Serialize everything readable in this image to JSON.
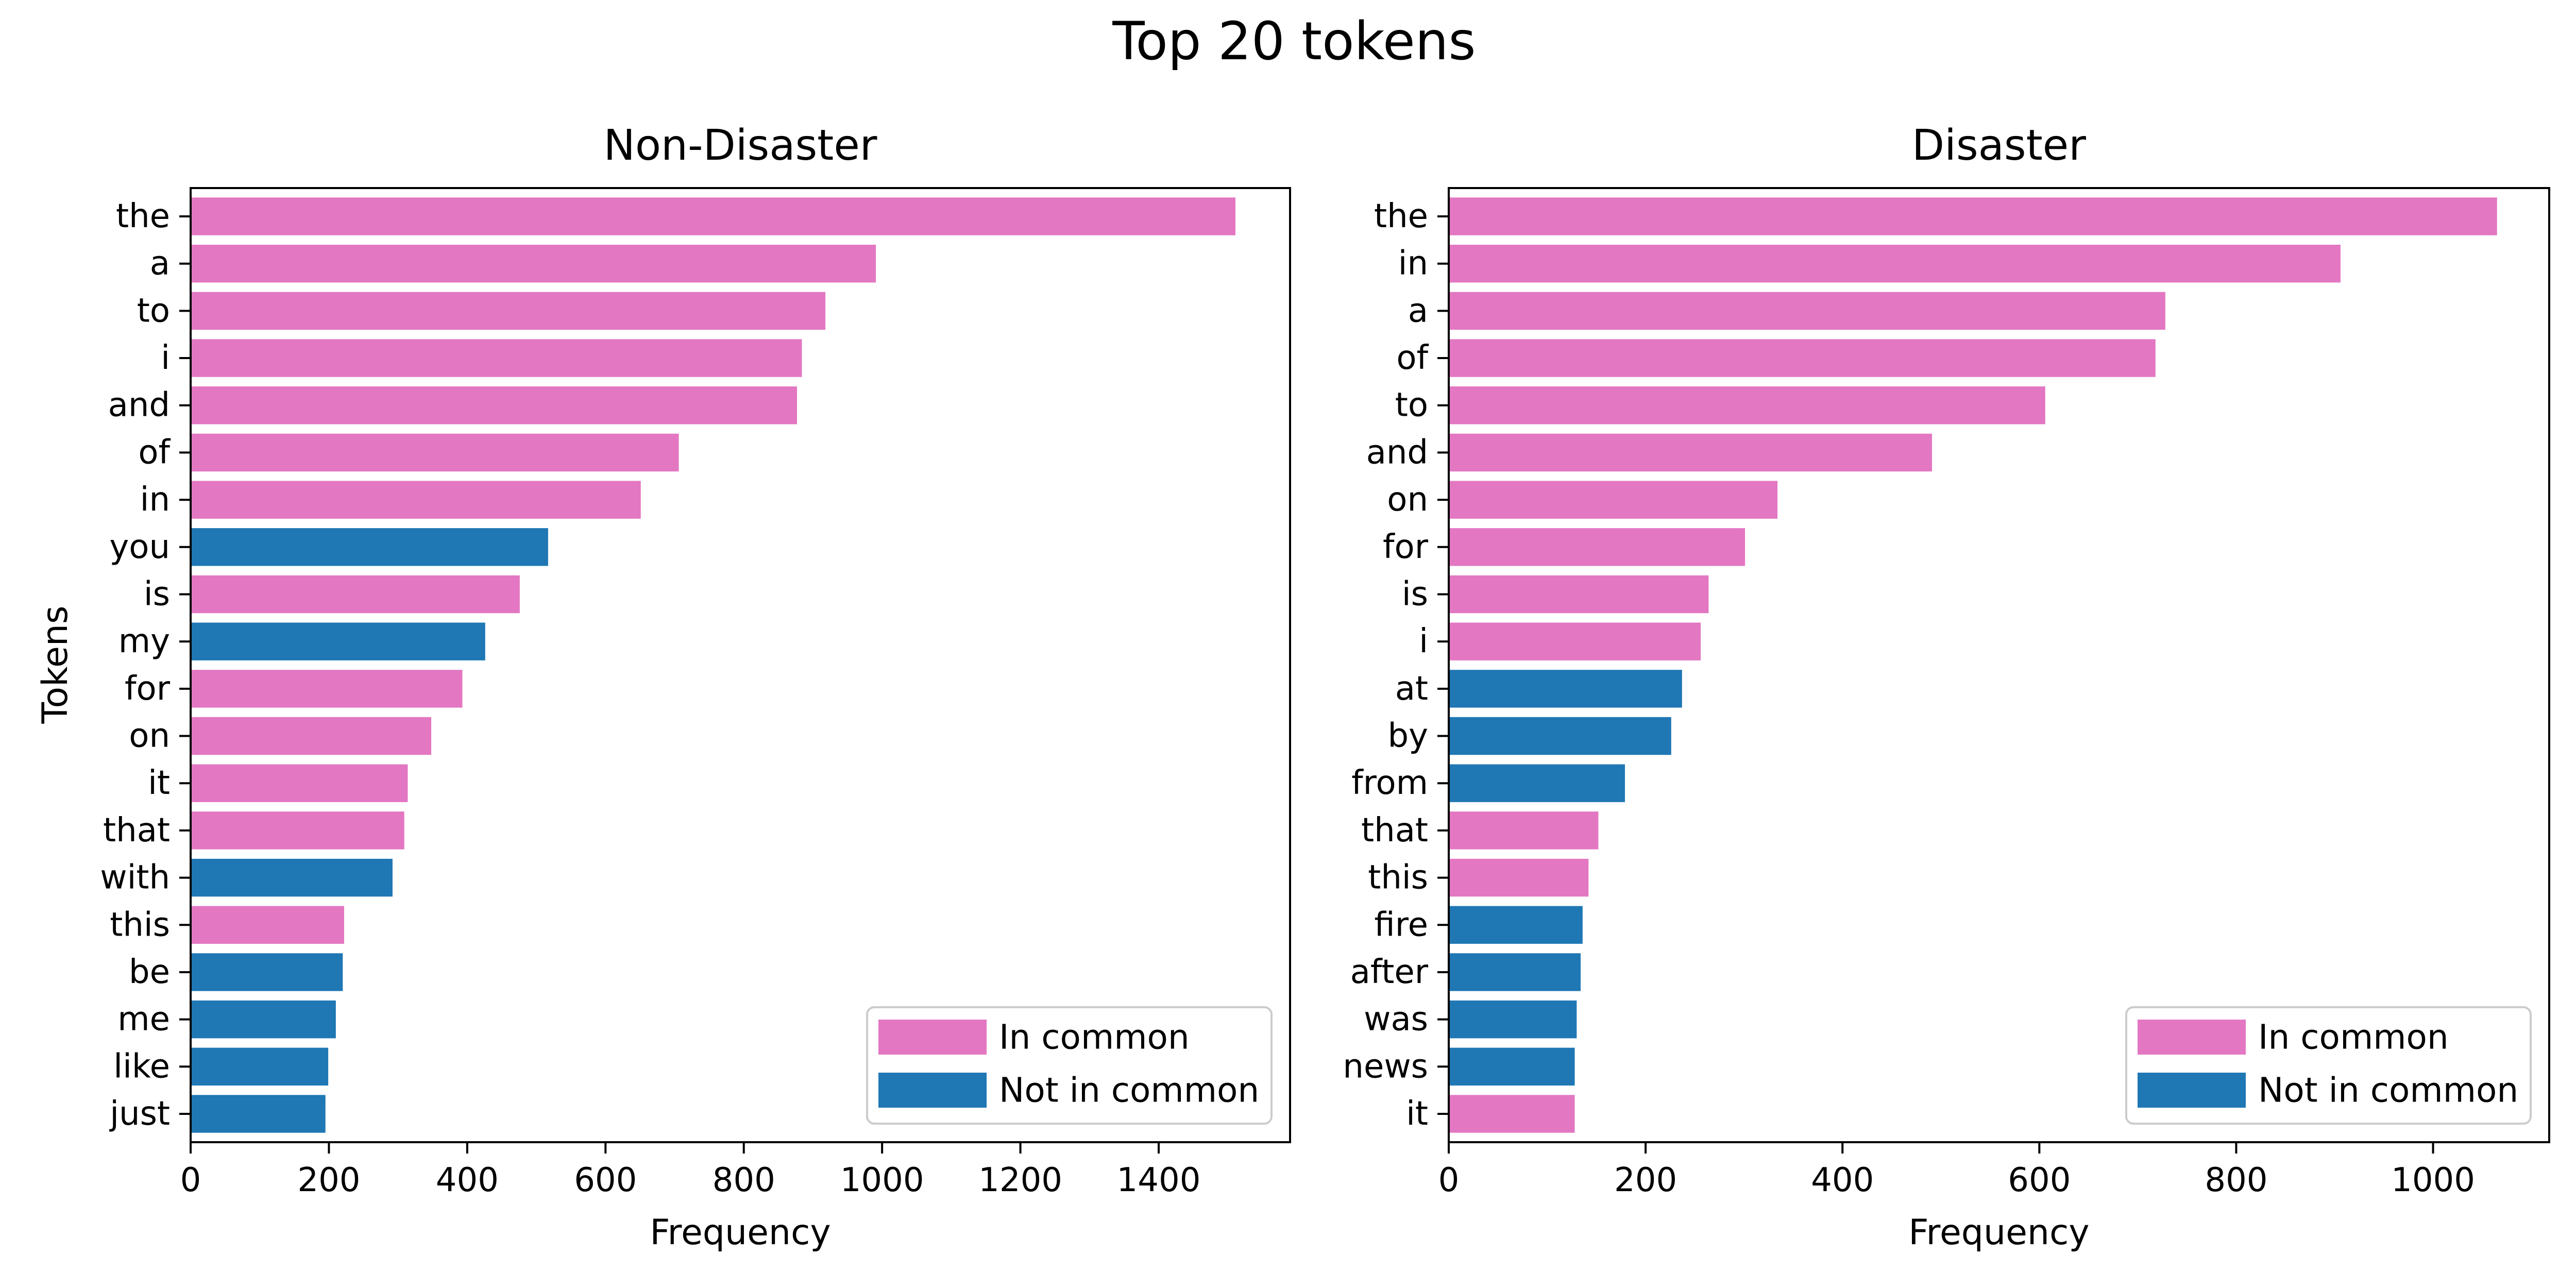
{
  "figure": {
    "title": "Top 20 tokens"
  },
  "colors": {
    "in_common": "#e377c2",
    "not_in_common": "#1f77b4"
  },
  "chart_data": [
    {
      "type": "bar",
      "orientation": "horizontal",
      "title": "Non-Disaster",
      "xlabel": "Frequency",
      "ylabel": "Tokens",
      "xlim": [
        0,
        1590
      ],
      "xticks": [
        0,
        200,
        400,
        600,
        800,
        1000,
        1200,
        1400
      ],
      "grid": false,
      "legend": {
        "position": "lower-right",
        "entries": [
          "In common",
          "Not in common"
        ]
      },
      "categories": [
        "the",
        "a",
        "to",
        "i",
        "and",
        "of",
        "in",
        "you",
        "is",
        "my",
        "for",
        "on",
        "it",
        "that",
        "with",
        "this",
        "be",
        "me",
        "like",
        "just"
      ],
      "values": [
        1511,
        991,
        918,
        884,
        877,
        706,
        651,
        517,
        476,
        426,
        393,
        348,
        314,
        309,
        292,
        222,
        220,
        210,
        199,
        195
      ],
      "in_common": [
        true,
        true,
        true,
        true,
        true,
        true,
        true,
        false,
        true,
        false,
        true,
        true,
        true,
        true,
        false,
        true,
        false,
        false,
        false,
        false
      ]
    },
    {
      "type": "bar",
      "orientation": "horizontal",
      "title": "Disaster",
      "xlabel": "Frequency",
      "ylabel": "",
      "xlim": [
        0,
        1118
      ],
      "xticks": [
        0,
        200,
        400,
        600,
        800,
        1000
      ],
      "grid": false,
      "legend": {
        "position": "lower-right",
        "entries": [
          "In common",
          "Not in common"
        ]
      },
      "categories": [
        "the",
        "in",
        "a",
        "of",
        "to",
        "and",
        "on",
        "for",
        "is",
        "i",
        "at",
        "by",
        "from",
        "that",
        "this",
        "fire",
        "after",
        "was",
        "news",
        "it"
      ],
      "values": [
        1065,
        906,
        728,
        718,
        606,
        491,
        334,
        301,
        264,
        256,
        237,
        226,
        179,
        152,
        142,
        136,
        134,
        130,
        128,
        128
      ],
      "in_common": [
        true,
        true,
        true,
        true,
        true,
        true,
        true,
        true,
        true,
        true,
        false,
        false,
        false,
        true,
        true,
        false,
        false,
        false,
        false,
        true
      ]
    }
  ]
}
